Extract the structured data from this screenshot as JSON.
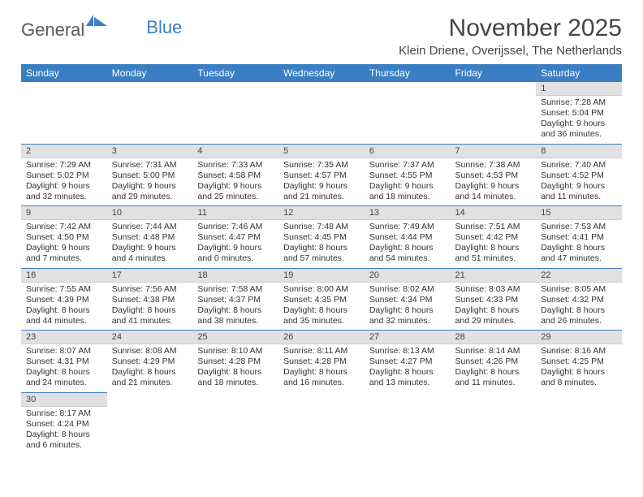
{
  "logo": {
    "main": "General",
    "accent": "Blue"
  },
  "title": "November 2025",
  "location": "Klein Driene, Overijssel, The Netherlands",
  "colors": {
    "brand_blue": "#3a7fc4",
    "header_text": "#ffffff",
    "daynum_bg": "#e1e1e1",
    "body_text": "#333333",
    "page_bg": "#ffffff"
  },
  "typography": {
    "title_fontsize": 30,
    "location_fontsize": 15,
    "header_fontsize": 12,
    "daynum_fontsize": 11,
    "cell_fontsize": 10.5
  },
  "calendar": {
    "type": "table",
    "columns": [
      "Sunday",
      "Monday",
      "Tuesday",
      "Wednesday",
      "Thursday",
      "Friday",
      "Saturday"
    ],
    "weeks": [
      [
        null,
        null,
        null,
        null,
        null,
        null,
        {
          "n": "1",
          "sunrise": "Sunrise: 7:28 AM",
          "sunset": "Sunset: 5:04 PM",
          "daylight": "Daylight: 9 hours and 36 minutes."
        }
      ],
      [
        {
          "n": "2",
          "sunrise": "Sunrise: 7:29 AM",
          "sunset": "Sunset: 5:02 PM",
          "daylight": "Daylight: 9 hours and 32 minutes."
        },
        {
          "n": "3",
          "sunrise": "Sunrise: 7:31 AM",
          "sunset": "Sunset: 5:00 PM",
          "daylight": "Daylight: 9 hours and 29 minutes."
        },
        {
          "n": "4",
          "sunrise": "Sunrise: 7:33 AM",
          "sunset": "Sunset: 4:58 PM",
          "daylight": "Daylight: 9 hours and 25 minutes."
        },
        {
          "n": "5",
          "sunrise": "Sunrise: 7:35 AM",
          "sunset": "Sunset: 4:57 PM",
          "daylight": "Daylight: 9 hours and 21 minutes."
        },
        {
          "n": "6",
          "sunrise": "Sunrise: 7:37 AM",
          "sunset": "Sunset: 4:55 PM",
          "daylight": "Daylight: 9 hours and 18 minutes."
        },
        {
          "n": "7",
          "sunrise": "Sunrise: 7:38 AM",
          "sunset": "Sunset: 4:53 PM",
          "daylight": "Daylight: 9 hours and 14 minutes."
        },
        {
          "n": "8",
          "sunrise": "Sunrise: 7:40 AM",
          "sunset": "Sunset: 4:52 PM",
          "daylight": "Daylight: 9 hours and 11 minutes."
        }
      ],
      [
        {
          "n": "9",
          "sunrise": "Sunrise: 7:42 AM",
          "sunset": "Sunset: 4:50 PM",
          "daylight": "Daylight: 9 hours and 7 minutes."
        },
        {
          "n": "10",
          "sunrise": "Sunrise: 7:44 AM",
          "sunset": "Sunset: 4:48 PM",
          "daylight": "Daylight: 9 hours and 4 minutes."
        },
        {
          "n": "11",
          "sunrise": "Sunrise: 7:46 AM",
          "sunset": "Sunset: 4:47 PM",
          "daylight": "Daylight: 9 hours and 0 minutes."
        },
        {
          "n": "12",
          "sunrise": "Sunrise: 7:48 AM",
          "sunset": "Sunset: 4:45 PM",
          "daylight": "Daylight: 8 hours and 57 minutes."
        },
        {
          "n": "13",
          "sunrise": "Sunrise: 7:49 AM",
          "sunset": "Sunset: 4:44 PM",
          "daylight": "Daylight: 8 hours and 54 minutes."
        },
        {
          "n": "14",
          "sunrise": "Sunrise: 7:51 AM",
          "sunset": "Sunset: 4:42 PM",
          "daylight": "Daylight: 8 hours and 51 minutes."
        },
        {
          "n": "15",
          "sunrise": "Sunrise: 7:53 AM",
          "sunset": "Sunset: 4:41 PM",
          "daylight": "Daylight: 8 hours and 47 minutes."
        }
      ],
      [
        {
          "n": "16",
          "sunrise": "Sunrise: 7:55 AM",
          "sunset": "Sunset: 4:39 PM",
          "daylight": "Daylight: 8 hours and 44 minutes."
        },
        {
          "n": "17",
          "sunrise": "Sunrise: 7:56 AM",
          "sunset": "Sunset: 4:38 PM",
          "daylight": "Daylight: 8 hours and 41 minutes."
        },
        {
          "n": "18",
          "sunrise": "Sunrise: 7:58 AM",
          "sunset": "Sunset: 4:37 PM",
          "daylight": "Daylight: 8 hours and 38 minutes."
        },
        {
          "n": "19",
          "sunrise": "Sunrise: 8:00 AM",
          "sunset": "Sunset: 4:35 PM",
          "daylight": "Daylight: 8 hours and 35 minutes."
        },
        {
          "n": "20",
          "sunrise": "Sunrise: 8:02 AM",
          "sunset": "Sunset: 4:34 PM",
          "daylight": "Daylight: 8 hours and 32 minutes."
        },
        {
          "n": "21",
          "sunrise": "Sunrise: 8:03 AM",
          "sunset": "Sunset: 4:33 PM",
          "daylight": "Daylight: 8 hours and 29 minutes."
        },
        {
          "n": "22",
          "sunrise": "Sunrise: 8:05 AM",
          "sunset": "Sunset: 4:32 PM",
          "daylight": "Daylight: 8 hours and 26 minutes."
        }
      ],
      [
        {
          "n": "23",
          "sunrise": "Sunrise: 8:07 AM",
          "sunset": "Sunset: 4:31 PM",
          "daylight": "Daylight: 8 hours and 24 minutes."
        },
        {
          "n": "24",
          "sunrise": "Sunrise: 8:08 AM",
          "sunset": "Sunset: 4:29 PM",
          "daylight": "Daylight: 8 hours and 21 minutes."
        },
        {
          "n": "25",
          "sunrise": "Sunrise: 8:10 AM",
          "sunset": "Sunset: 4:28 PM",
          "daylight": "Daylight: 8 hours and 18 minutes."
        },
        {
          "n": "26",
          "sunrise": "Sunrise: 8:11 AM",
          "sunset": "Sunset: 4:28 PM",
          "daylight": "Daylight: 8 hours and 16 minutes."
        },
        {
          "n": "27",
          "sunrise": "Sunrise: 8:13 AM",
          "sunset": "Sunset: 4:27 PM",
          "daylight": "Daylight: 8 hours and 13 minutes."
        },
        {
          "n": "28",
          "sunrise": "Sunrise: 8:14 AM",
          "sunset": "Sunset: 4:26 PM",
          "daylight": "Daylight: 8 hours and 11 minutes."
        },
        {
          "n": "29",
          "sunrise": "Sunrise: 8:16 AM",
          "sunset": "Sunset: 4:25 PM",
          "daylight": "Daylight: 8 hours and 8 minutes."
        }
      ],
      [
        {
          "n": "30",
          "sunrise": "Sunrise: 8:17 AM",
          "sunset": "Sunset: 4:24 PM",
          "daylight": "Daylight: 8 hours and 6 minutes."
        },
        null,
        null,
        null,
        null,
        null,
        null
      ]
    ]
  }
}
